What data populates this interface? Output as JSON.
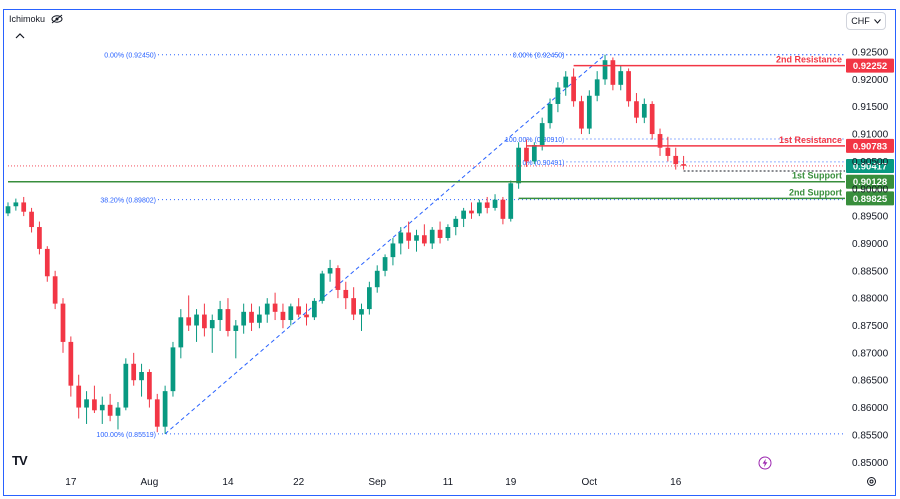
{
  "header": {
    "indicator_label": "Ichimoku",
    "currency_button": "CHF"
  },
  "icons": {
    "eye": "eye-icon",
    "collapse": "chevron-up-icon",
    "currency_dropdown": "chevron-down-icon",
    "logo": "tradingview-logo-icon",
    "bolt": "lightning-icon",
    "settings": "gear-icon"
  },
  "logo_text": "TV",
  "colors": {
    "up": "#089981",
    "down": "#f23645",
    "resistance": "#f23645",
    "support": "#388e3c",
    "fib": "#2962ff",
    "current_price": "#089981"
  },
  "chart_data": {
    "type": "candlestick",
    "ylim": [
      0.85,
      0.9265
    ],
    "y_ticks": [
      "0.92500",
      "0.92000",
      "0.91500",
      "0.91000",
      "0.90500",
      "0.90000",
      "0.89500",
      "0.89000",
      "0.88500",
      "0.88000",
      "0.87500",
      "0.87000",
      "0.86500",
      "0.86000",
      "0.85500",
      "0.85000"
    ],
    "y_tick_values": [
      0.925,
      0.92,
      0.915,
      0.91,
      0.905,
      0.9,
      0.895,
      0.89,
      0.885,
      0.88,
      0.875,
      0.87,
      0.865,
      0.86,
      0.855,
      0.85
    ],
    "x_labels": [
      "17",
      "Aug",
      "14",
      "22",
      "Sep",
      "11",
      "19",
      "Oct",
      "16"
    ],
    "x_label_index": [
      8,
      18,
      28,
      37,
      47,
      56,
      64,
      74,
      85
    ],
    "total_bars": 98,
    "levels": [
      {
        "label": "2nd Resistance",
        "value": 0.92252,
        "price_label": "0.92252",
        "kind": "resistance",
        "start_bar": 72
      },
      {
        "label": "1st Resistance",
        "value": 0.90783,
        "price_label": "0.90783",
        "kind": "resistance",
        "start_bar": 66
      },
      {
        "label": "1st Support",
        "value": 0.90128,
        "price_label": "0.90128",
        "kind": "support",
        "start_bar": 0
      },
      {
        "label": "2nd Support",
        "value": 0.89825,
        "price_label": "0.89825",
        "kind": "support",
        "start_bar": 65
      }
    ],
    "current_price": {
      "value": 0.90417,
      "price_label": "0.90417"
    },
    "fib_levels": [
      {
        "label": "0.00% (0.92450)",
        "value": 0.9245,
        "start_bar": 14
      },
      {
        "label": "38.20% (0.89802)",
        "value": 0.89802,
        "start_bar": 14
      },
      {
        "label": "100.00% (0.85519)",
        "value": 0.85519,
        "start_bar": 14
      },
      {
        "label": "0.00% (0.92450)",
        "value": 0.9245,
        "start_bar": 66
      },
      {
        "label": "100.00% (0.90910)",
        "value": 0.9091,
        "start_bar": 66
      },
      {
        "label": "0% (0.90491)",
        "value": 0.90491,
        "start_bar": 66
      }
    ],
    "fib_trend": [
      {
        "from_bar": 20,
        "from_value": 0.85519,
        "to_bar": 76,
        "to_value": 0.9245
      }
    ],
    "ohlc": [
      [
        0.8955,
        0.8975,
        0.895,
        0.8968
      ],
      [
        0.8968,
        0.8982,
        0.896,
        0.8975
      ],
      [
        0.8975,
        0.8985,
        0.895,
        0.8958
      ],
      [
        0.8958,
        0.8965,
        0.892,
        0.893
      ],
      [
        0.893,
        0.894,
        0.888,
        0.889
      ],
      [
        0.889,
        0.8895,
        0.883,
        0.884
      ],
      [
        0.884,
        0.885,
        0.878,
        0.879
      ],
      [
        0.879,
        0.88,
        0.87,
        0.872
      ],
      [
        0.872,
        0.873,
        0.862,
        0.864
      ],
      [
        0.864,
        0.866,
        0.858,
        0.86
      ],
      [
        0.86,
        0.863,
        0.857,
        0.8615
      ],
      [
        0.8615,
        0.864,
        0.859,
        0.8595
      ],
      [
        0.8595,
        0.862,
        0.857,
        0.8605
      ],
      [
        0.8605,
        0.8625,
        0.8575,
        0.8585
      ],
      [
        0.8585,
        0.861,
        0.856,
        0.86
      ],
      [
        0.86,
        0.869,
        0.8595,
        0.868
      ],
      [
        0.868,
        0.87,
        0.864,
        0.865
      ],
      [
        0.865,
        0.868,
        0.862,
        0.8665
      ],
      [
        0.8665,
        0.867,
        0.86,
        0.8615
      ],
      [
        0.8615,
        0.8625,
        0.8555,
        0.8565
      ],
      [
        0.8565,
        0.864,
        0.8552,
        0.863
      ],
      [
        0.863,
        0.872,
        0.862,
        0.871
      ],
      [
        0.871,
        0.878,
        0.869,
        0.8765
      ],
      [
        0.8765,
        0.8805,
        0.874,
        0.875
      ],
      [
        0.875,
        0.878,
        0.872,
        0.877
      ],
      [
        0.877,
        0.879,
        0.873,
        0.8745
      ],
      [
        0.8745,
        0.877,
        0.87,
        0.876
      ],
      [
        0.876,
        0.8795,
        0.874,
        0.878
      ],
      [
        0.878,
        0.88,
        0.873,
        0.874
      ],
      [
        0.874,
        0.876,
        0.869,
        0.875
      ],
      [
        0.875,
        0.879,
        0.8735,
        0.8775
      ],
      [
        0.8775,
        0.879,
        0.874,
        0.8755
      ],
      [
        0.8755,
        0.8785,
        0.8745,
        0.877
      ],
      [
        0.877,
        0.88,
        0.8755,
        0.879
      ],
      [
        0.879,
        0.881,
        0.876,
        0.8775
      ],
      [
        0.8775,
        0.879,
        0.8745,
        0.876
      ],
      [
        0.876,
        0.879,
        0.875,
        0.8785
      ],
      [
        0.8785,
        0.88,
        0.8765,
        0.877
      ],
      [
        0.877,
        0.879,
        0.875,
        0.8765
      ],
      [
        0.8765,
        0.88,
        0.876,
        0.8795
      ],
      [
        0.8795,
        0.885,
        0.879,
        0.8845
      ],
      [
        0.8845,
        0.887,
        0.883,
        0.8855
      ],
      [
        0.8855,
        0.886,
        0.88,
        0.8815
      ],
      [
        0.8815,
        0.883,
        0.878,
        0.88
      ],
      [
        0.88,
        0.882,
        0.876,
        0.877
      ],
      [
        0.877,
        0.879,
        0.874,
        0.878
      ],
      [
        0.878,
        0.883,
        0.877,
        0.882
      ],
      [
        0.882,
        0.886,
        0.881,
        0.885
      ],
      [
        0.885,
        0.888,
        0.884,
        0.8875
      ],
      [
        0.8875,
        0.891,
        0.886,
        0.89
      ],
      [
        0.89,
        0.893,
        0.888,
        0.892
      ],
      [
        0.892,
        0.894,
        0.889,
        0.8905
      ],
      [
        0.8905,
        0.8925,
        0.8885,
        0.8915
      ],
      [
        0.8915,
        0.8935,
        0.8895,
        0.89
      ],
      [
        0.89,
        0.893,
        0.889,
        0.8925
      ],
      [
        0.8925,
        0.894,
        0.89,
        0.891
      ],
      [
        0.891,
        0.8935,
        0.8905,
        0.893
      ],
      [
        0.893,
        0.895,
        0.8915,
        0.8945
      ],
      [
        0.8945,
        0.8965,
        0.893,
        0.896
      ],
      [
        0.896,
        0.8975,
        0.8945,
        0.8955
      ],
      [
        0.8955,
        0.898,
        0.895,
        0.8975
      ],
      [
        0.8975,
        0.8985,
        0.8955,
        0.8965
      ],
      [
        0.8965,
        0.899,
        0.896,
        0.898
      ],
      [
        0.898,
        0.8985,
        0.8935,
        0.8945
      ],
      [
        0.8945,
        0.9015,
        0.894,
        0.901
      ],
      [
        0.901,
        0.9085,
        0.9,
        0.9075
      ],
      [
        0.9075,
        0.909,
        0.904,
        0.905
      ],
      [
        0.905,
        0.9085,
        0.9045,
        0.908
      ],
      [
        0.908,
        0.913,
        0.907,
        0.912
      ],
      [
        0.912,
        0.9165,
        0.911,
        0.9155
      ],
      [
        0.9155,
        0.9195,
        0.914,
        0.9185
      ],
      [
        0.9185,
        0.9215,
        0.917,
        0.9205
      ],
      [
        0.9205,
        0.922,
        0.915,
        0.916
      ],
      [
        0.916,
        0.917,
        0.91,
        0.911
      ],
      [
        0.911,
        0.918,
        0.91,
        0.917
      ],
      [
        0.917,
        0.9215,
        0.916,
        0.92
      ],
      [
        0.92,
        0.9245,
        0.919,
        0.9235
      ],
      [
        0.9235,
        0.924,
        0.918,
        0.919
      ],
      [
        0.919,
        0.9225,
        0.918,
        0.9215
      ],
      [
        0.9215,
        0.922,
        0.915,
        0.916
      ],
      [
        0.916,
        0.9175,
        0.912,
        0.913
      ],
      [
        0.913,
        0.9165,
        0.912,
        0.9155
      ],
      [
        0.9155,
        0.916,
        0.909,
        0.91
      ],
      [
        0.91,
        0.911,
        0.906,
        0.9075
      ],
      [
        0.9075,
        0.9095,
        0.905,
        0.906
      ],
      [
        0.906,
        0.9075,
        0.9035,
        0.9045
      ],
      [
        0.9045,
        0.906,
        0.9035,
        0.9042
      ]
    ]
  }
}
